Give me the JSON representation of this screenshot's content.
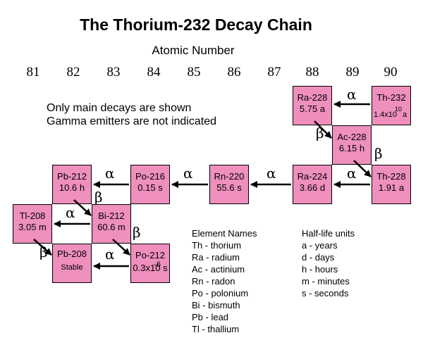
{
  "title": "The Thorium-232 Decay Chain",
  "axis_title": "Atomic Number",
  "atomic_numbers": [
    "81",
    "82",
    "83",
    "84",
    "85",
    "86",
    "87",
    "88",
    "89",
    "90"
  ],
  "notes": [
    "Only main decays are shown",
    "Gamma emitters are not indicated"
  ],
  "nuclides": [
    {
      "name": "Th-232",
      "half_life_mantissa": "1.4x10",
      "half_life_exponent": "10",
      "half_life_unit": "a"
    },
    {
      "name": "Ra-228",
      "half_life": "5.75 a"
    },
    {
      "name": "Ac-228",
      "half_life": "6.15 h"
    },
    {
      "name": "Th-228",
      "half_life": "1.91 a"
    },
    {
      "name": "Ra-224",
      "half_life": "3.66 d"
    },
    {
      "name": "Rn-220",
      "half_life": "55.6 s"
    },
    {
      "name": "Po-216",
      "half_life": "0.15 s"
    },
    {
      "name": "Pb-212",
      "half_life": "10.6 h"
    },
    {
      "name": "Bi-212",
      "half_life": "60.6 m"
    },
    {
      "name": "Tl-208",
      "half_life": "3.05 m"
    },
    {
      "name": "Po-212",
      "half_life_exponent": "-6",
      "half_life": "0.3x10 s"
    },
    {
      "name": "Pb-208",
      "half_life": "Stable"
    }
  ],
  "decays": [
    {
      "label": "α"
    },
    {
      "label": "β"
    },
    {
      "label": "β"
    },
    {
      "label": "α"
    },
    {
      "label": "α"
    },
    {
      "label": "α"
    },
    {
      "label": "α"
    },
    {
      "label": "β"
    },
    {
      "label": "α"
    },
    {
      "label": "β"
    },
    {
      "label": "β"
    },
    {
      "label": "α"
    }
  ],
  "element_names": {
    "heading": "Element Names",
    "items": [
      "Th - thorium",
      "Ra - radium",
      "Ac - actinium",
      "Rn - radon",
      "Po - polonium",
      "Bi - bismuth",
      "Pb - lead",
      "Tl - thallium"
    ]
  },
  "half_life_units": {
    "heading": "Half-life units",
    "items": [
      "a - years",
      "d - days",
      "h - hours",
      "m - minutes",
      "s - seconds"
    ]
  },
  "colors": {
    "box_fill": "#ee8fbd",
    "box_border": "#000000",
    "arrow": "#000000"
  }
}
